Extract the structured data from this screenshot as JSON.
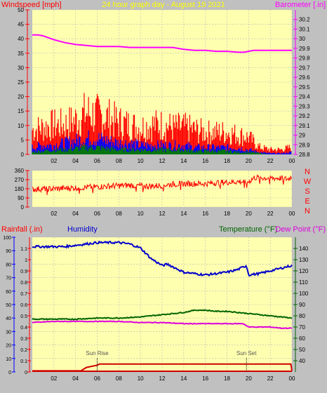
{
  "header": {
    "left_title": "Windspeed [mph]",
    "center_title": "24 hour graph day - August 19 2021",
    "right_title": "Barometer [.in]"
  },
  "colors": {
    "background": "#c0c0c0",
    "plot_bg": "#ffffb0",
    "grid": "#b8b8b8",
    "wind_gust": "#ff0000",
    "wind_avg": "#0000ff",
    "wind_low": "#008000",
    "barometer": "#ff00ff",
    "direction": "#ff0000",
    "rain_axis": "#ff0000",
    "humidity": "#0000cc",
    "temperature": "#006400",
    "dewpoint": "#dd00dd",
    "rainfall": "#d00000",
    "header_center": "#ffff00"
  },
  "x_ticks": [
    "02",
    "04",
    "06",
    "08",
    "10",
    "12",
    "14",
    "16",
    "18",
    "20",
    "22",
    "00"
  ],
  "chart_data": [
    {
      "type": "line",
      "title": "24 hour graph day - August 19 2021",
      "ylabel": "Windspeed [mph]",
      "y2label": "Barometer [.in]",
      "xlim": [
        0,
        24
      ],
      "ylim": [
        0,
        50
      ],
      "y_ticks": [
        "0",
        "5",
        "10",
        "15",
        "20",
        "25",
        "30",
        "35",
        "40",
        "45",
        "50"
      ],
      "y2lim": [
        28.8,
        30.3
      ],
      "y2_ticks": [
        "28.8",
        "28.9",
        "29",
        "29.1",
        "29.2",
        "29.3",
        "29.4",
        "29.5",
        "29.6",
        "29.7",
        "29.8",
        "29.9",
        "30",
        "30.1",
        "30.2"
      ],
      "grid": true,
      "series": [
        {
          "name": "Barometer",
          "axis": "right",
          "x": [
            0,
            0.5,
            1,
            1.5,
            2,
            3,
            4,
            5,
            6,
            7,
            8,
            9,
            10,
            11,
            12,
            13,
            14,
            15,
            16,
            17,
            18,
            19,
            19.6,
            20,
            20.5,
            21,
            22,
            23,
            24
          ],
          "y": [
            30.04,
            30.04,
            30.03,
            30.01,
            29.99,
            29.96,
            29.94,
            29.93,
            29.92,
            29.92,
            29.92,
            29.91,
            29.91,
            29.91,
            29.91,
            29.91,
            29.89,
            29.88,
            29.88,
            29.87,
            29.87,
            29.86,
            29.86,
            29.87,
            29.88,
            29.88,
            29.88,
            29.88,
            29.88
          ]
        },
        {
          "name": "Gust profile",
          "axis": "left",
          "x": [
            0,
            1,
            2,
            3,
            4,
            5,
            6,
            7,
            8,
            9,
            10,
            11,
            12,
            13,
            14,
            15,
            16,
            17,
            18,
            19,
            20,
            21,
            22,
            23,
            24
          ],
          "y": [
            10,
            11,
            12,
            12,
            14,
            17,
            16,
            15,
            13,
            12,
            11,
            12,
            12,
            11,
            11,
            10,
            9,
            9,
            9,
            8,
            7,
            3,
            2,
            2,
            3
          ]
        },
        {
          "name": "Average profile",
          "axis": "left",
          "x": [
            0,
            1,
            2,
            3,
            4,
            5,
            6,
            7,
            8,
            9,
            10,
            11,
            12,
            13,
            14,
            15,
            16,
            17,
            18,
            19,
            20,
            21,
            22,
            23,
            24
          ],
          "y": [
            3,
            4,
            4,
            5,
            6,
            7,
            7,
            6,
            5,
            5,
            4,
            4,
            4,
            4,
            4,
            3,
            3,
            3,
            3,
            3,
            2,
            1,
            0.5,
            0.5,
            1
          ]
        },
        {
          "name": "Low profile",
          "axis": "left",
          "x": [
            0,
            1,
            2,
            3,
            4,
            5,
            6,
            7,
            8,
            9,
            10,
            11,
            12,
            13,
            14,
            15,
            16,
            17,
            18,
            19,
            20,
            21,
            22,
            23,
            24
          ],
          "y": [
            1,
            1.5,
            2,
            2,
            2.5,
            3,
            3,
            2.5,
            2,
            2,
            2,
            2,
            2,
            2,
            2,
            1.5,
            1.5,
            1.5,
            1.5,
            1,
            1,
            0.5,
            0,
            0,
            0
          ]
        }
      ]
    },
    {
      "type": "line",
      "xlim": [
        0,
        24
      ],
      "ylim": [
        0,
        360
      ],
      "y_ticks": [
        "0",
        "90",
        "180",
        "270",
        "360"
      ],
      "compass_labels": [
        "N",
        "W",
        "S",
        "E",
        "N"
      ],
      "series": [
        {
          "name": "Direction profile",
          "x": [
            0,
            1,
            2,
            3,
            4,
            5,
            6,
            7,
            8,
            9,
            10,
            11,
            12,
            13,
            14,
            15,
            16,
            17,
            18,
            19,
            20,
            20.5,
            21,
            22,
            23,
            23.6,
            24
          ],
          "y": [
            175,
            180,
            180,
            185,
            190,
            195,
            200,
            205,
            210,
            215,
            210,
            205,
            215,
            225,
            230,
            230,
            230,
            240,
            245,
            250,
            250,
            290,
            290,
            285,
            285,
            275,
            300
          ]
        }
      ]
    },
    {
      "type": "line",
      "left_labels": [
        "Rainfall (.in)",
        "Humidity"
      ],
      "right_labels": [
        "Temperature (°F)",
        "Dew Point (°F)"
      ],
      "xlim": [
        0,
        24
      ],
      "rain_lim": [
        0,
        1.2
      ],
      "rain_ticks": [
        "0",
        "0.1",
        "0.2",
        "0.3",
        "0.4",
        "0.5",
        "0.6",
        "0.7",
        "0.8",
        "0.9",
        "1",
        "1.1"
      ],
      "humidity_lim": [
        0,
        100
      ],
      "humidity_ticks": [
        "0",
        "10",
        "20",
        "30",
        "40",
        "50",
        "60",
        "70",
        "80",
        "90",
        "100"
      ],
      "temp_lim": [
        30,
        150
      ],
      "temp_ticks": [
        "40",
        "50",
        "60",
        "70",
        "80",
        "90",
        "100",
        "110",
        "120",
        "130",
        "140"
      ],
      "annotations": [
        "Sun Rise",
        "Sun Set"
      ],
      "sun_rise": 6.0,
      "sun_set": 19.8,
      "series": [
        {
          "name": "Humidity",
          "axis": "humidity",
          "x": [
            0,
            1,
            2,
            3,
            4,
            5,
            6,
            7,
            8,
            9,
            10,
            11,
            12,
            12.5,
            13,
            14,
            15,
            16,
            17,
            18,
            19,
            19.8,
            20,
            21,
            22,
            23,
            24
          ],
          "y": [
            93,
            93,
            93,
            93,
            94,
            95,
            96,
            96,
            96,
            95,
            92,
            84,
            79,
            80,
            78,
            74,
            73,
            72,
            73,
            74,
            76,
            79,
            72,
            73,
            75,
            77,
            79
          ]
        },
        {
          "name": "Temperature",
          "axis": "temp",
          "x": [
            0,
            2,
            4,
            6,
            8,
            10,
            12,
            14,
            15,
            16,
            17,
            18,
            19,
            20,
            21,
            22,
            23,
            24
          ],
          "y": [
            77,
            77,
            77,
            78,
            78,
            79,
            81,
            83,
            85,
            85,
            84,
            84,
            83,
            82,
            81,
            80,
            79,
            78
          ]
        },
        {
          "name": "Dew Point",
          "axis": "temp",
          "x": [
            0,
            2,
            4,
            6,
            8,
            10,
            12,
            14,
            16,
            18,
            19.5,
            20,
            21,
            22,
            23,
            24
          ],
          "y": [
            74,
            75,
            75,
            75,
            75,
            74,
            74,
            73,
            73,
            73,
            73,
            70,
            70,
            70,
            69,
            69
          ]
        },
        {
          "name": "Rainfall",
          "axis": "rain",
          "x": [
            0,
            4.5,
            5,
            6,
            6.2,
            23.9,
            24
          ],
          "y": [
            0.01,
            0.01,
            0.04,
            0.06,
            0.07,
            0.07,
            0.01
          ]
        }
      ]
    }
  ]
}
